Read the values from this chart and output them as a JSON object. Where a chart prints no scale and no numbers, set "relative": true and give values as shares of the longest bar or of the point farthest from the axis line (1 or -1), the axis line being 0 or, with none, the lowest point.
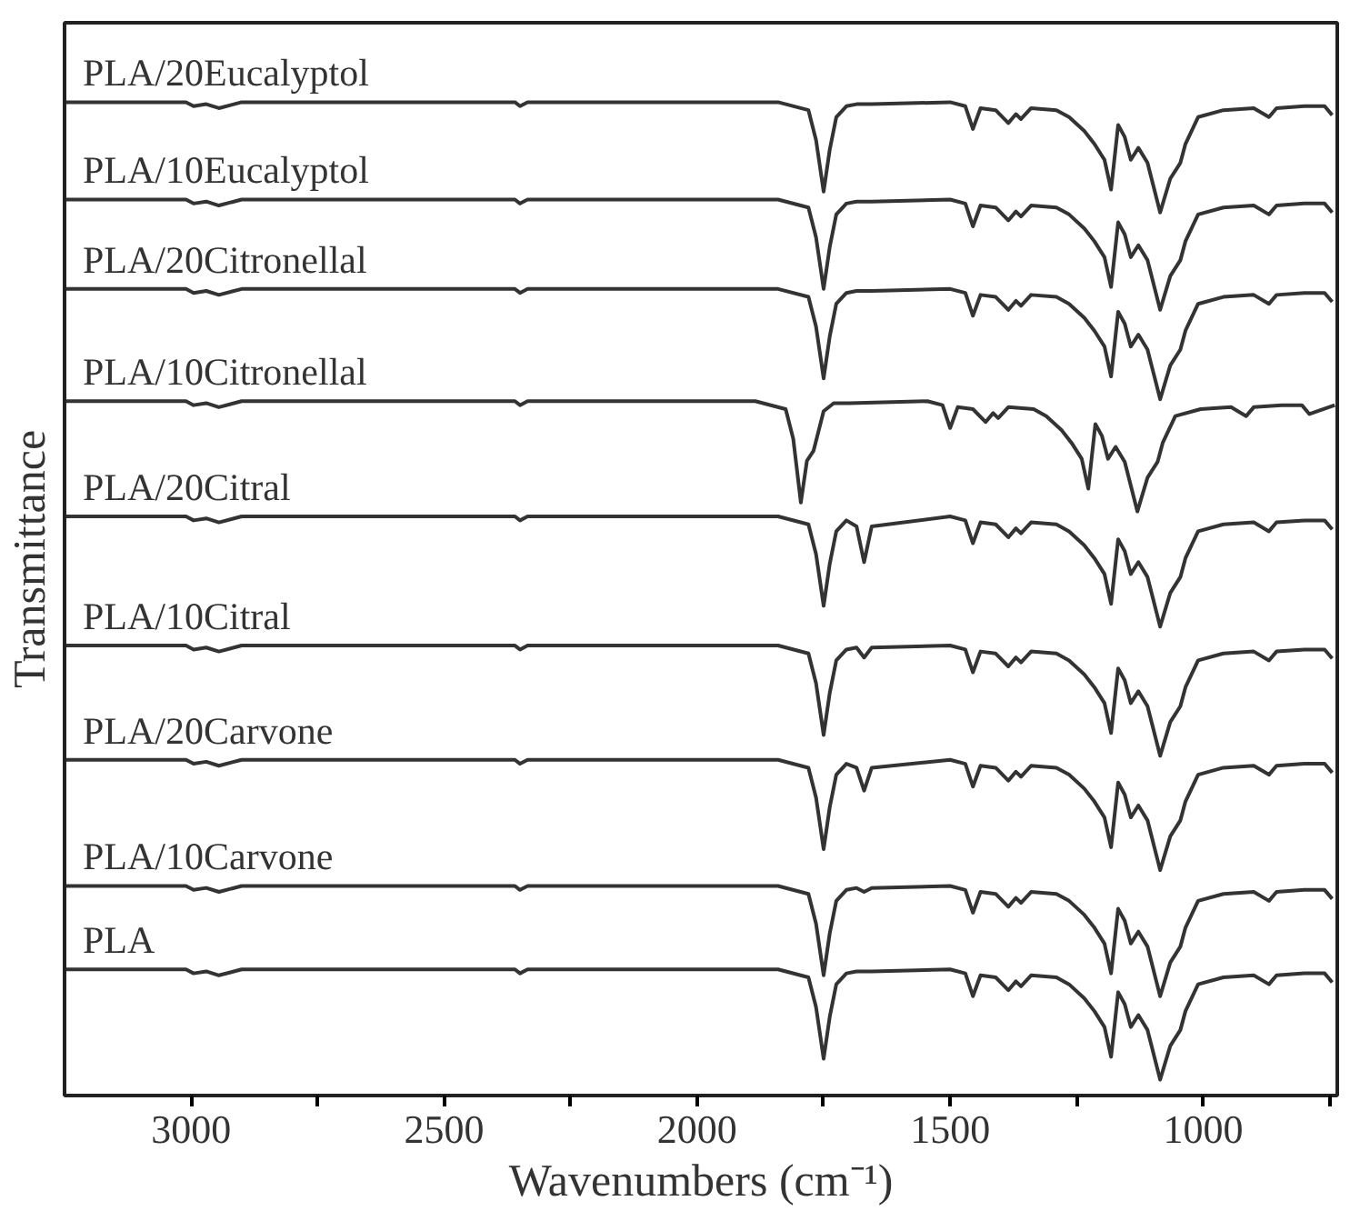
{
  "chart_data": {
    "type": "line",
    "relative": true,
    "xlabel": "Wavenumbers (cm⁻¹)",
    "ylabel": "Transmittance",
    "xlim": [
      3250,
      735
    ],
    "xticks": [
      3000,
      {
        "value": 2750,
        "label": null
      },
      2500,
      {
        "value": 2250,
        "label": null
      },
      2000,
      {
        "value": 1750,
        "label": null
      },
      1500,
      {
        "value": 1250,
        "label": null
      },
      1000,
      {
        "value": 750,
        "label": null
      }
    ],
    "x": [
      3250,
      3010,
      2995,
      2970,
      2945,
      2900,
      2360,
      2350,
      2335,
      1840,
      1780,
      1765,
      1750,
      1738,
      1725,
      1705,
      1685,
      1670,
      1655,
      1500,
      1470,
      1455,
      1440,
      1410,
      1385,
      1370,
      1360,
      1340,
      1290,
      1265,
      1235,
      1215,
      1195,
      1182,
      1168,
      1155,
      1143,
      1128,
      1110,
      1085,
      1065,
      1045,
      1035,
      1010,
      960,
      900,
      870,
      855,
      800,
      760,
      745
    ],
    "series": [
      {
        "name": "PLA/20Eucalyptol",
        "color": "#333333",
        "values": [
          1,
          1,
          0.996,
          0.998,
          0.994,
          1,
          1,
          0.996,
          1,
          1,
          0.992,
          0.962,
          0.91,
          0.952,
          0.985,
          0.996,
          0.998,
          0.998,
          0.998,
          1,
          0.996,
          0.973,
          0.994,
          0.992,
          0.979,
          0.988,
          0.983,
          0.994,
          0.992,
          0.985,
          0.971,
          0.958,
          0.942,
          0.912,
          0.977,
          0.965,
          0.942,
          0.954,
          0.939,
          0.889,
          0.923,
          0.939,
          0.958,
          0.985,
          0.992,
          0.994,
          0.985,
          0.994,
          0.996,
          0.996,
          0.987
        ]
      },
      {
        "name": "PLA/10Eucalyptol",
        "color": "#333333",
        "values": [
          0.902,
          0.902,
          0.898,
          0.9,
          0.896,
          0.902,
          0.902,
          0.898,
          0.902,
          0.902,
          0.894,
          0.864,
          0.812,
          0.854,
          0.887,
          0.898,
          0.9,
          0.9,
          0.9,
          0.902,
          0.898,
          0.875,
          0.896,
          0.894,
          0.881,
          0.89,
          0.885,
          0.896,
          0.894,
          0.887,
          0.873,
          0.86,
          0.844,
          0.814,
          0.879,
          0.867,
          0.844,
          0.856,
          0.841,
          0.791,
          0.825,
          0.841,
          0.86,
          0.887,
          0.894,
          0.896,
          0.887,
          0.896,
          0.898,
          0.898,
          0.889
        ]
      },
      {
        "name": "PLA/20Citronellal",
        "color": "#333333",
        "values": [
          0.812,
          0.812,
          0.808,
          0.81,
          0.806,
          0.812,
          0.812,
          0.808,
          0.812,
          0.812,
          0.804,
          0.774,
          0.722,
          0.764,
          0.797,
          0.808,
          0.81,
          0.81,
          0.81,
          0.812,
          0.808,
          0.785,
          0.806,
          0.804,
          0.791,
          0.8,
          0.795,
          0.806,
          0.804,
          0.797,
          0.783,
          0.77,
          0.754,
          0.724,
          0.789,
          0.777,
          0.754,
          0.766,
          0.751,
          0.701,
          0.735,
          0.751,
          0.77,
          0.797,
          0.804,
          0.806,
          0.797,
          0.806,
          0.808,
          0.808,
          0.799
        ]
      },
      {
        "name": "PLA/10Citronellal",
        "color": "#333333",
        "x": [
          3250,
          3010,
          2995,
          2970,
          2945,
          2900,
          2360,
          2350,
          2335,
          1885,
          1825,
          1810,
          1795,
          1783,
          1770,
          1750,
          1730,
          1715,
          1700,
          1545,
          1515,
          1500,
          1485,
          1455,
          1430,
          1415,
          1405,
          1385,
          1335,
          1310,
          1280,
          1260,
          1240,
          1227,
          1213,
          1200,
          1188,
          1173,
          1155,
          1130,
          1110,
          1090,
          1080,
          1055,
          1005,
          945,
          915,
          900,
          845,
          805,
          790,
          740
        ],
        "values": [
          0.699,
          0.699,
          0.695,
          0.697,
          0.693,
          0.699,
          0.699,
          0.695,
          0.699,
          0.699,
          0.691,
          0.661,
          0.597,
          0.639,
          0.649,
          0.689,
          0.697,
          0.697,
          0.697,
          0.699,
          0.695,
          0.672,
          0.693,
          0.691,
          0.678,
          0.687,
          0.682,
          0.693,
          0.691,
          0.684,
          0.67,
          0.657,
          0.641,
          0.611,
          0.676,
          0.664,
          0.641,
          0.653,
          0.638,
          0.588,
          0.622,
          0.638,
          0.657,
          0.684,
          0.691,
          0.693,
          0.684,
          0.693,
          0.695,
          0.695,
          0.686,
          0.695
        ]
      },
      {
        "name": "PLA/20Citral",
        "color": "#333333",
        "values": [
          0.583,
          0.583,
          0.579,
          0.581,
          0.577,
          0.583,
          0.583,
          0.579,
          0.583,
          0.583,
          0.575,
          0.545,
          0.493,
          0.535,
          0.568,
          0.579,
          0.573,
          0.537,
          0.573,
          0.583,
          0.579,
          0.556,
          0.577,
          0.575,
          0.562,
          0.571,
          0.566,
          0.577,
          0.575,
          0.568,
          0.554,
          0.541,
          0.525,
          0.495,
          0.56,
          0.548,
          0.525,
          0.537,
          0.522,
          0.472,
          0.506,
          0.522,
          0.541,
          0.568,
          0.575,
          0.577,
          0.568,
          0.577,
          0.579,
          0.579,
          0.57
        ]
      },
      {
        "name": "PLA/10Citral",
        "color": "#333333",
        "values": [
          0.453,
          0.453,
          0.449,
          0.451,
          0.447,
          0.453,
          0.453,
          0.449,
          0.453,
          0.453,
          0.445,
          0.415,
          0.363,
          0.405,
          0.438,
          0.449,
          0.451,
          0.441,
          0.451,
          0.453,
          0.449,
          0.426,
          0.447,
          0.445,
          0.432,
          0.441,
          0.436,
          0.447,
          0.445,
          0.438,
          0.424,
          0.411,
          0.395,
          0.365,
          0.43,
          0.418,
          0.395,
          0.407,
          0.392,
          0.342,
          0.376,
          0.392,
          0.411,
          0.438,
          0.445,
          0.447,
          0.438,
          0.447,
          0.449,
          0.449,
          0.44
        ]
      },
      {
        "name": "PLA/20Carvone",
        "color": "#333333",
        "values": [
          0.338,
          0.338,
          0.334,
          0.336,
          0.332,
          0.338,
          0.338,
          0.334,
          0.338,
          0.338,
          0.33,
          0.3,
          0.248,
          0.29,
          0.323,
          0.334,
          0.33,
          0.307,
          0.33,
          0.338,
          0.334,
          0.311,
          0.332,
          0.33,
          0.317,
          0.326,
          0.321,
          0.332,
          0.33,
          0.323,
          0.309,
          0.296,
          0.28,
          0.25,
          0.315,
          0.303,
          0.28,
          0.292,
          0.277,
          0.227,
          0.261,
          0.277,
          0.296,
          0.323,
          0.33,
          0.332,
          0.323,
          0.332,
          0.334,
          0.334,
          0.325
        ]
      },
      {
        "name": "PLA/10Carvone",
        "color": "#333333",
        "values": [
          0.211,
          0.211,
          0.207,
          0.209,
          0.205,
          0.211,
          0.211,
          0.207,
          0.211,
          0.211,
          0.203,
          0.173,
          0.121,
          0.163,
          0.196,
          0.207,
          0.209,
          0.205,
          0.209,
          0.211,
          0.207,
          0.184,
          0.205,
          0.203,
          0.19,
          0.199,
          0.194,
          0.205,
          0.203,
          0.196,
          0.182,
          0.169,
          0.153,
          0.123,
          0.188,
          0.176,
          0.153,
          0.165,
          0.15,
          0.1,
          0.134,
          0.15,
          0.169,
          0.196,
          0.203,
          0.205,
          0.196,
          0.205,
          0.207,
          0.207,
          0.198
        ]
      },
      {
        "name": "PLA",
        "color": "#333333",
        "values": [
          0.127,
          0.127,
          0.123,
          0.125,
          0.121,
          0.127,
          0.127,
          0.123,
          0.127,
          0.127,
          0.119,
          0.089,
          0.037,
          0.079,
          0.112,
          0.123,
          0.125,
          0.125,
          0.125,
          0.127,
          0.123,
          0.1,
          0.121,
          0.119,
          0.106,
          0.115,
          0.11,
          0.121,
          0.119,
          0.112,
          0.098,
          0.085,
          0.069,
          0.039,
          0.104,
          0.092,
          0.069,
          0.081,
          0.066,
          0.016,
          0.05,
          0.066,
          0.085,
          0.112,
          0.119,
          0.121,
          0.112,
          0.121,
          0.123,
          0.123,
          0.114
        ]
      }
    ]
  }
}
